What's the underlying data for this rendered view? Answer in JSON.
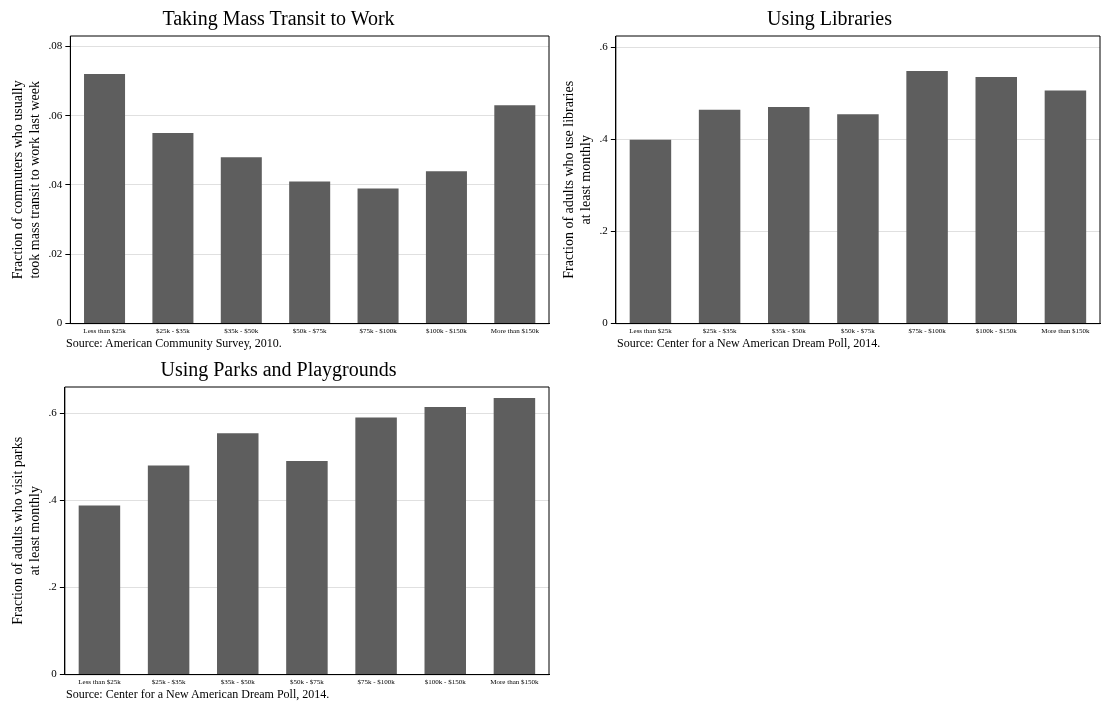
{
  "chart_data": [
    {
      "type": "bar",
      "title": "Taking Mass Transit to Work",
      "ylabel": "Fraction of commuters who usually\ntook mass transit to work last week",
      "categories": [
        "Less than $25k",
        "$25k - $35k",
        "$35k - $50k",
        "$50k - $75k",
        "$75k - $100k",
        "$100k - $150k",
        "More than $150k"
      ],
      "values": [
        0.072,
        0.055,
        0.048,
        0.041,
        0.039,
        0.044,
        0.063
      ],
      "color": "#5e5e5e",
      "ylim": [
        0,
        0.083
      ],
      "yticks": [
        {
          "value": 0,
          "label": "0"
        },
        {
          "value": 0.02,
          "label": ".02"
        },
        {
          "value": 0.04,
          "label": ".04"
        },
        {
          "value": 0.06,
          "label": ".06"
        },
        {
          "value": 0.08,
          "label": ".08"
        }
      ],
      "grid": "y",
      "annotations": [
        "Source: American Community Survey, 2010."
      ]
    },
    {
      "type": "bar",
      "title": "Using Libraries",
      "ylabel": "Fraction of adults who use libraries\nat least monthly",
      "categories": [
        "Less than $25k",
        "$25k - $35k",
        "$35k - $50k",
        "$50k - $75k",
        "$75k - $100k",
        "$100k - $150k",
        "More than $150k"
      ],
      "values": [
        0.399,
        0.464,
        0.47,
        0.454,
        0.548,
        0.535,
        0.506
      ],
      "color": "#5e5e5e",
      "ylim": [
        0,
        0.624
      ],
      "yticks": [
        {
          "value": 0,
          "label": "0"
        },
        {
          "value": 0.2,
          "label": ".2"
        },
        {
          "value": 0.4,
          "label": ".4"
        },
        {
          "value": 0.6,
          "label": ".6"
        }
      ],
      "grid": "y",
      "annotations": [
        "Source: Center for a New American Dream Poll, 2014."
      ]
    },
    {
      "type": "bar",
      "title": "Using Parks and Playgrounds",
      "ylabel": "Fraction of adults who visit parks\nat least monthly",
      "categories": [
        "Less than $25k",
        "$25k - $35k",
        "$35k - $50k",
        "$50k - $75k",
        "$75k - $100k",
        "$100k - $150k",
        "More than $150k"
      ],
      "values": [
        0.388,
        0.48,
        0.554,
        0.49,
        0.59,
        0.614,
        0.635
      ],
      "color": "#5e5e5e",
      "ylim": [
        0,
        0.66
      ],
      "yticks": [
        {
          "value": 0,
          "label": "0"
        },
        {
          "value": 0.2,
          "label": ".2"
        },
        {
          "value": 0.4,
          "label": ".4"
        },
        {
          "value": 0.6,
          "label": ".6"
        }
      ],
      "grid": "y",
      "annotations": [
        "Source: Center for a New American Dream Poll, 2014."
      ]
    }
  ]
}
